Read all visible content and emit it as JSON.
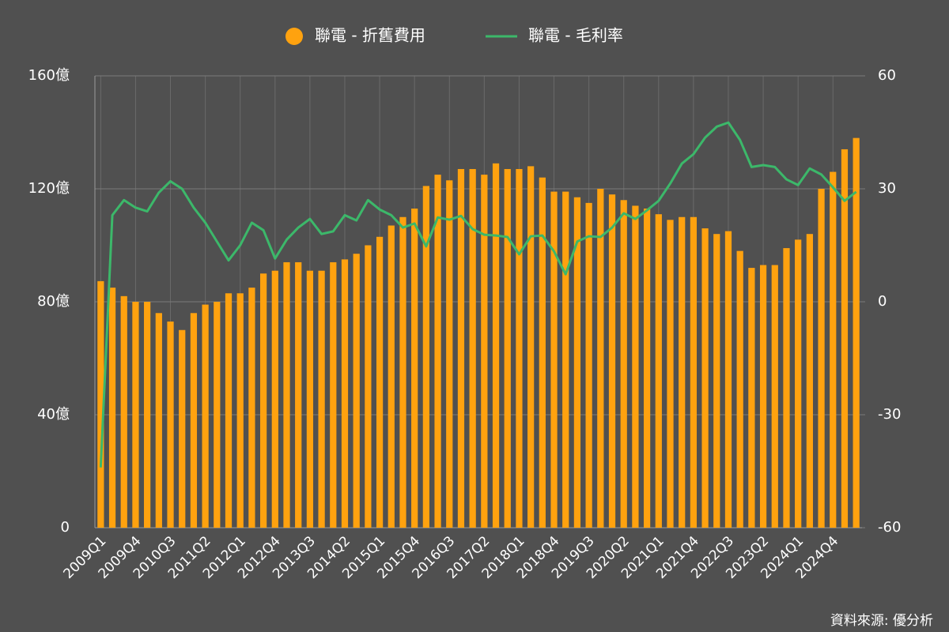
{
  "chart_data": {
    "type": "bar-line",
    "source": "資料來源: 優分析",
    "categories": [
      "2009Q1",
      null,
      null,
      "2009Q4",
      null,
      null,
      "2010Q3",
      null,
      null,
      "2011Q2",
      null,
      null,
      "2012Q1",
      null,
      null,
      "2012Q4",
      null,
      null,
      "2013Q3",
      null,
      null,
      "2014Q2",
      null,
      null,
      "2015Q1",
      null,
      null,
      "2015Q4",
      null,
      null,
      "2016Q3",
      null,
      null,
      "2017Q2",
      null,
      null,
      "2018Q1",
      null,
      null,
      "2018Q4",
      null,
      null,
      "2019Q3",
      null,
      null,
      "2020Q2",
      null,
      null,
      "2021Q1",
      null,
      null,
      "2021Q4",
      null,
      null,
      "2022Q3",
      null,
      null,
      "2023Q2",
      null,
      null,
      "2024Q1",
      null,
      null,
      "2024Q4",
      null,
      null
    ],
    "series": [
      {
        "name": "聯電 - 折舊費用",
        "type": "bar",
        "color": "#ffa20f",
        "axis": "y",
        "values": [
          87.3,
          85,
          82,
          80,
          80,
          76,
          73,
          70,
          76,
          79,
          80,
          83,
          83,
          85,
          90,
          91,
          94,
          94,
          91,
          91,
          94,
          95,
          97,
          100,
          103,
          107,
          110,
          113,
          121,
          125,
          123,
          127,
          127,
          125,
          129,
          127,
          127,
          128,
          124,
          119,
          119,
          117,
          115,
          120,
          118,
          116,
          114,
          113,
          111,
          109,
          110,
          110,
          106,
          104,
          105,
          98,
          92,
          93,
          93,
          99,
          102,
          104,
          120,
          126,
          134,
          138
        ]
      },
      {
        "name": "聯電 - 毛利率",
        "type": "line",
        "color": "#3cb86a",
        "axis": "y2",
        "values": [
          -44,
          23,
          27,
          25,
          24,
          29,
          32,
          30,
          25,
          21,
          16,
          11,
          15,
          21,
          19,
          11.5,
          16.5,
          19.7,
          22,
          18,
          18.7,
          23,
          21.6,
          27,
          24.5,
          23,
          19.7,
          20.8,
          14.7,
          22.4,
          21.8,
          22.8,
          19.3,
          17.8,
          17.6,
          17.2,
          12.6,
          17.4,
          17.6,
          13.4,
          7.3,
          16,
          17.4,
          17.2,
          19.7,
          23.5,
          22,
          24.3,
          26.8,
          31.4,
          36.7,
          39.2,
          43.6,
          46.5,
          47.6,
          43,
          35.8,
          36.3,
          35.8,
          32.5,
          31,
          35.4,
          33.8,
          30.4,
          26.8,
          29.2
        ]
      }
    ],
    "ylim": [
      0,
      160
    ],
    "yticks": [
      {
        "value": 0,
        "label": "0"
      },
      {
        "value": 40,
        "label": "40億"
      },
      {
        "value": 80,
        "label": "80億"
      },
      {
        "value": 120,
        "label": "120億"
      },
      {
        "value": 160,
        "label": "160億"
      }
    ],
    "y2lim": [
      -60,
      60
    ],
    "y2ticks": [
      -60,
      -30,
      0,
      30,
      60
    ],
    "grid": true,
    "legend": "top"
  }
}
